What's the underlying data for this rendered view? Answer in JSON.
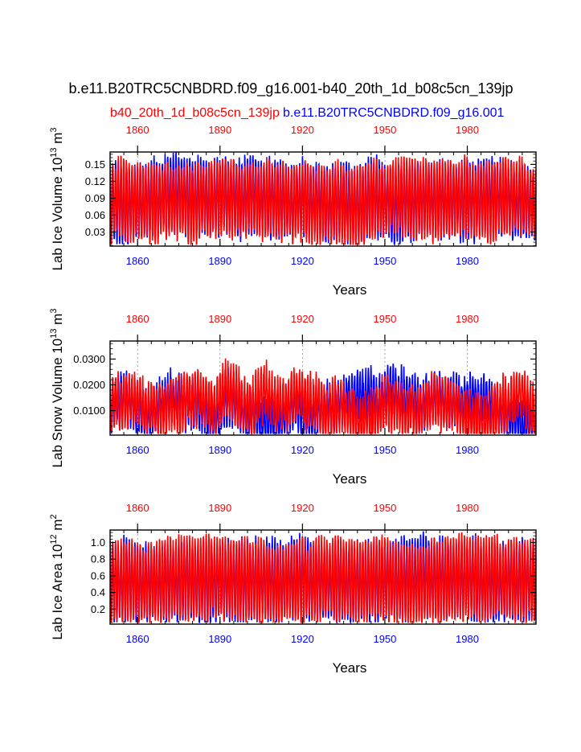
{
  "title": "b.e11.B20TRC5CNBDRD.f09_g16.001-b40_20th_1d_b08c5cn_139jp",
  "legend": {
    "left_label": "b40_20th_1d_b08c5cn_139jp",
    "left_color": "#ff0000",
    "right_label": "b.e11.B20TRC5CNBDRD.f09_g16.001",
    "right_color": "#0000ff"
  },
  "chart_data": [
    {
      "type": "line",
      "ylabel": "Lab Ice Volume 10",
      "ylabel_exp": "13",
      "ylabel_unit": " m",
      "ylabel_unit_exp": "3",
      "xlabel": "Years",
      "xlim": [
        1850,
        2005
      ],
      "ylim": [
        0.005,
        0.172
      ],
      "yticks": [
        0.03,
        0.06,
        0.09,
        0.12,
        0.15
      ],
      "ytick_labels": [
        "0.03",
        "0.06",
        "0.09",
        "0.12",
        "0.15"
      ],
      "xticks": [
        1860,
        1890,
        1920,
        1950,
        1980
      ],
      "xtick_labels": [
        "1860",
        "1890",
        "1920",
        "1950",
        "1980"
      ],
      "series": [
        {
          "name": "b.e11.B20TRC5CNBDRD.f09_g16.001",
          "color": "#0000ff",
          "mean": 0.085,
          "amplitude": 0.065,
          "noise": 0.01,
          "seed": 11
        },
        {
          "name": "b40_20th_1d_b08c5cn_139jp",
          "color": "#ff0000",
          "mean": 0.085,
          "amplitude": 0.065,
          "noise": 0.01,
          "seed": 29
        }
      ]
    },
    {
      "type": "line",
      "ylabel": "Lab Snow Volume 10",
      "ylabel_exp": "13",
      "ylabel_unit": " m",
      "ylabel_unit_exp": "3",
      "xlabel": "Years",
      "xlim": [
        1850,
        2005
      ],
      "ylim": [
        0.0005,
        0.037
      ],
      "yticks": [
        0.01,
        0.02,
        0.03
      ],
      "ytick_labels": [
        "0.0100",
        "0.0200",
        "0.0300"
      ],
      "xticks": [
        1860,
        1890,
        1920,
        1950,
        1980
      ],
      "xtick_labels": [
        "1860",
        "1890",
        "1920",
        "1950",
        "1980"
      ],
      "series": [
        {
          "name": "b.e11.B20TRC5CNBDRD.f09_g16.001",
          "color": "#0000ff",
          "mean": 0.012,
          "amplitude": 0.009,
          "noise": 0.0045,
          "seed": 47
        },
        {
          "name": "b40_20th_1d_b08c5cn_139jp",
          "color": "#ff0000",
          "mean": 0.0125,
          "amplitude": 0.0095,
          "noise": 0.0045,
          "seed": 83
        }
      ]
    },
    {
      "type": "line",
      "ylabel": "Lab Ice Area 10",
      "ylabel_exp": "12",
      "ylabel_unit": " m",
      "ylabel_unit_exp": "2",
      "xlabel": "Years",
      "xlim": [
        1850,
        2005
      ],
      "ylim": [
        0.02,
        1.15
      ],
      "yticks": [
        0.2,
        0.4,
        0.6,
        0.8,
        1.0
      ],
      "ytick_labels": [
        "0.2",
        "0.4",
        "0.6",
        "0.8",
        "1.0"
      ],
      "xticks": [
        1860,
        1890,
        1920,
        1950,
        1980
      ],
      "xtick_labels": [
        "1860",
        "1890",
        "1920",
        "1950",
        "1980"
      ],
      "series": [
        {
          "name": "b.e11.B20TRC5CNBDRD.f09_g16.001",
          "color": "#0000ff",
          "mean": 0.55,
          "amplitude": 0.47,
          "noise": 0.04,
          "seed": 101
        },
        {
          "name": "b40_20th_1d_b08c5cn_139jp",
          "color": "#ff0000",
          "mean": 0.55,
          "amplitude": 0.47,
          "noise": 0.04,
          "seed": 137
        }
      ]
    }
  ]
}
